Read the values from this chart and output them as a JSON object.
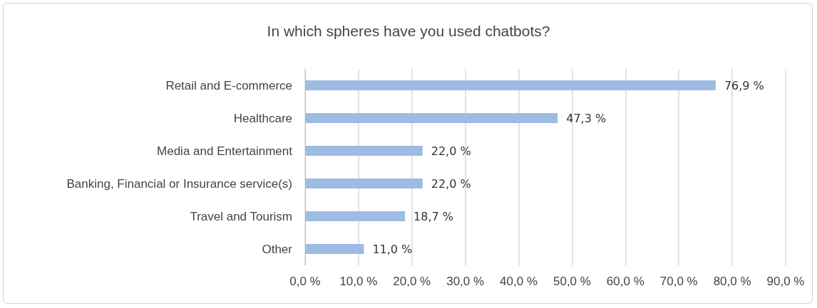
{
  "chart_data": {
    "type": "bar",
    "orientation": "horizontal",
    "title": "In which spheres have you used chatbots?",
    "categories": [
      "Retail and E-commerce",
      "Healthcare",
      "Media and Entertainment",
      "Banking, Financial or Insurance service(s)",
      "Travel and Tourism",
      "Other"
    ],
    "values": [
      76.9,
      47.3,
      22.0,
      22.0,
      18.7,
      11.0
    ],
    "value_labels": [
      "76,9 %",
      "47,3 %",
      "22,0 %",
      "22,0 %",
      "18,7 %",
      "11,0 %"
    ],
    "color": "#9dbbe3",
    "xlim": [
      0,
      90
    ],
    "xticks": [
      {
        "value": 0,
        "label": "0,0 %"
      },
      {
        "value": 10,
        "label": "10,0 %"
      },
      {
        "value": 20,
        "label": "20,0 %"
      },
      {
        "value": 30,
        "label": "30,0 %"
      },
      {
        "value": 40,
        "label": "40,0 %"
      },
      {
        "value": 50,
        "label": "50,0 %"
      },
      {
        "value": 60,
        "label": "60,0 %"
      },
      {
        "value": 70,
        "label": "70,0 %"
      },
      {
        "value": 80,
        "label": "80,0 %"
      },
      {
        "value": 90,
        "label": "90,0 %"
      }
    ],
    "grid": "x"
  }
}
